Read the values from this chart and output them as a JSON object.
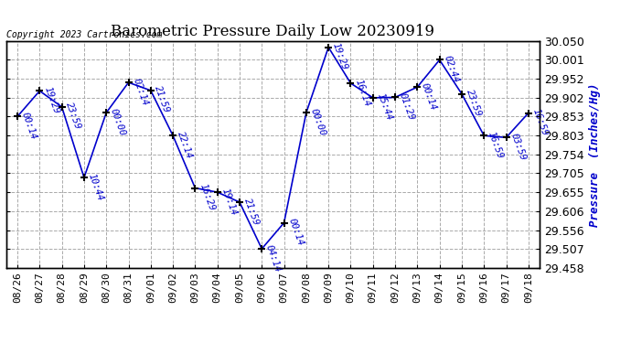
{
  "title": "Barometric Pressure Daily Low 20230919",
  "ylabel": "Pressure  (Inches/Hg)",
  "copyright": "Copyright 2023 Cartronics.com",
  "background_color": "#ffffff",
  "line_color": "#0000cc",
  "marker_color": "#000000",
  "label_color": "#0000cc",
  "ylim": [
    29.458,
    30.05
  ],
  "yticks": [
    29.458,
    29.507,
    29.556,
    29.606,
    29.655,
    29.705,
    29.754,
    29.803,
    29.853,
    29.902,
    29.952,
    30.001,
    30.05
  ],
  "dates": [
    "08/26",
    "08/27",
    "08/28",
    "08/29",
    "08/30",
    "08/31",
    "09/01",
    "09/02",
    "09/03",
    "09/04",
    "09/05",
    "09/06",
    "09/07",
    "09/08",
    "09/09",
    "09/10",
    "09/11",
    "09/12",
    "09/13",
    "09/14",
    "09/15",
    "09/16",
    "09/17",
    "09/18"
  ],
  "values": [
    29.853,
    29.92,
    29.878,
    29.693,
    29.863,
    29.942,
    29.921,
    29.803,
    29.666,
    29.655,
    29.629,
    29.507,
    29.575,
    29.863,
    30.034,
    29.94,
    29.902,
    29.903,
    29.93,
    30.001,
    29.912,
    29.803,
    29.798,
    29.862
  ],
  "labels": [
    "00:14",
    "19:29",
    "23:59",
    "10:44",
    "00:00",
    "02:14",
    "21:59",
    "22:14",
    "16:29",
    "19:14",
    "21:59",
    "04:14",
    "00:14",
    "00:00",
    "19:29",
    "16:14",
    "15:44",
    "01:29",
    "00:14",
    "02:44",
    "23:59",
    "16:59",
    "03:59",
    "16:59"
  ],
  "label_rotation": -70,
  "label_fontsize": 7.5,
  "title_fontsize": 12,
  "tick_fontsize": 8,
  "ytick_fontsize": 9,
  "grid_color": "#aaaaaa",
  "grid_style": "--",
  "border_color": "#000000"
}
